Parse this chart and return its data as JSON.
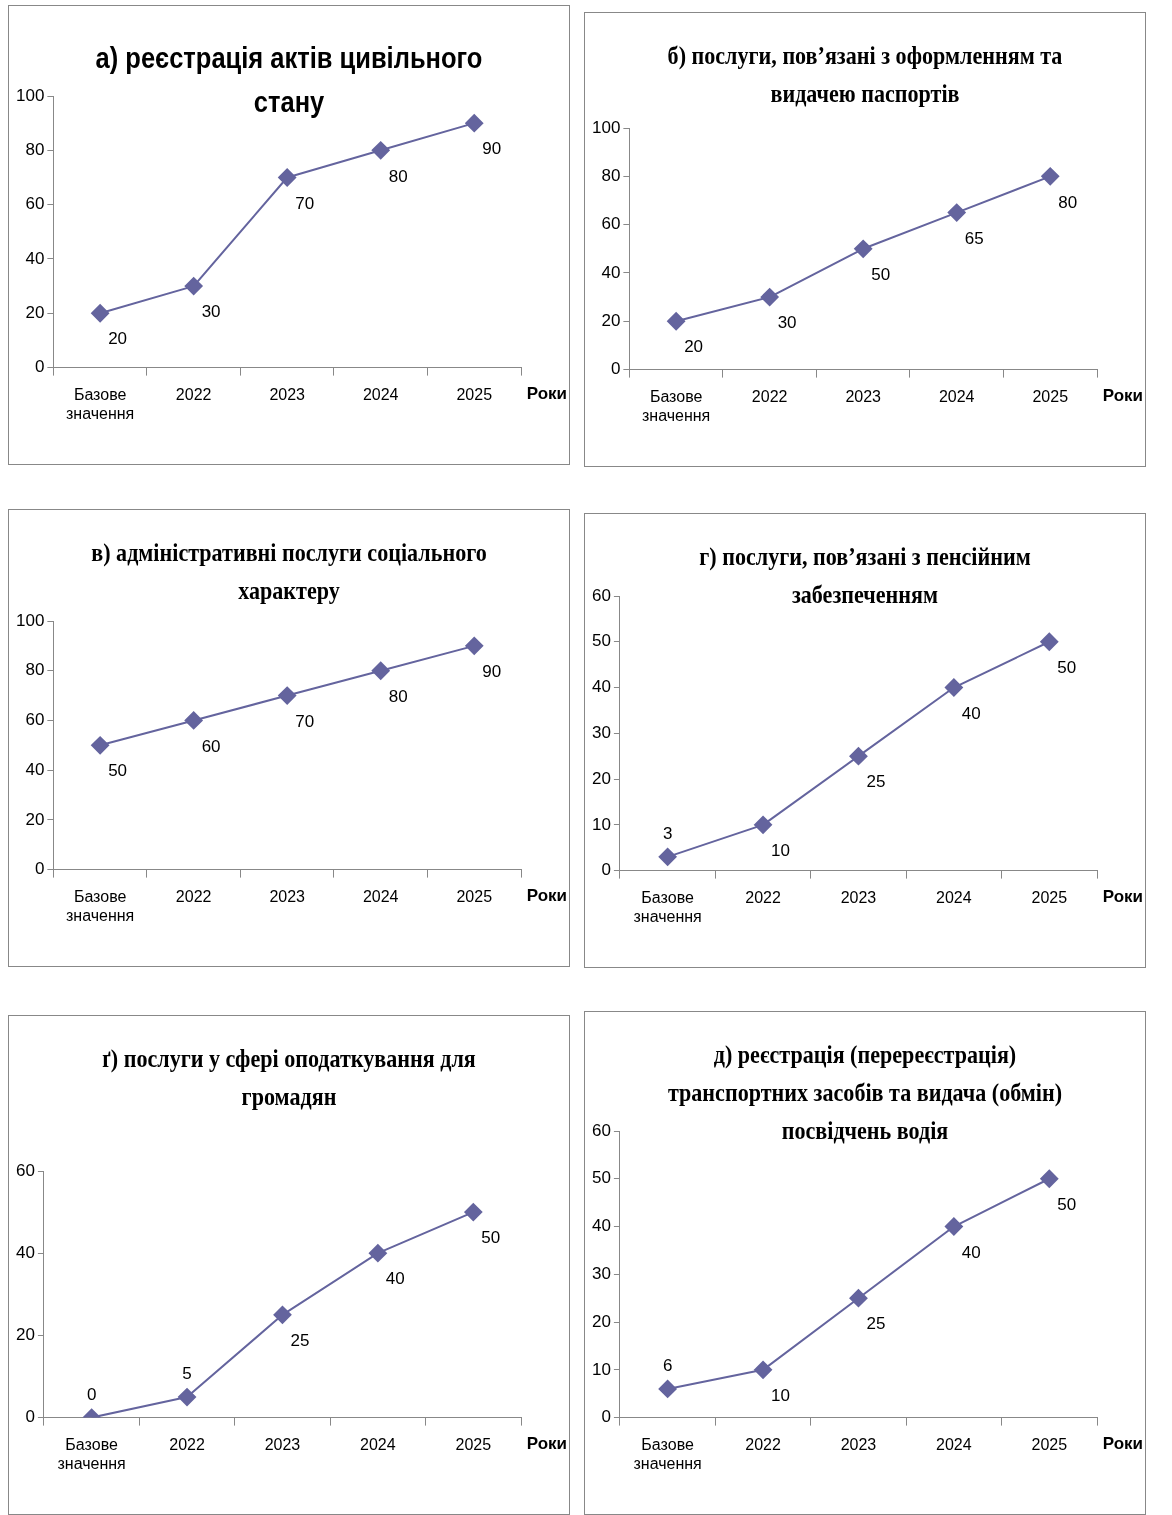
{
  "chart_data": [
    {
      "type": "line",
      "title": "а) реєстрація актів цивільного стану",
      "xlabel": "Роки",
      "categories": [
        "Базове значення",
        "2022",
        "2023",
        "2024",
        "2025"
      ],
      "values": [
        20,
        30,
        70,
        80,
        90
      ],
      "color": "#64649e",
      "ylim": [
        0,
        100
      ],
      "yticks": [
        0,
        20,
        40,
        60,
        80,
        100
      ],
      "grid": false,
      "marker": "diamond",
      "data_labels": true
    },
    {
      "type": "line",
      "title": "б) послуги, пов’язані з оформленням та видачею паспортів",
      "xlabel": "Роки",
      "categories": [
        "Базове значення",
        "2022",
        "2023",
        "2024",
        "2025"
      ],
      "values": [
        20,
        30,
        50,
        65,
        80
      ],
      "color": "#64649e",
      "ylim": [
        0,
        100
      ],
      "yticks": [
        0,
        20,
        40,
        60,
        80,
        100
      ],
      "grid": false,
      "marker": "diamond",
      "data_labels": true
    },
    {
      "type": "line",
      "title": "в) адміністративні послуги соціального характеру",
      "xlabel": "Роки",
      "categories": [
        "Базове значення",
        "2022",
        "2023",
        "2024",
        "2025"
      ],
      "values": [
        50,
        60,
        70,
        80,
        90
      ],
      "color": "#64649e",
      "ylim": [
        0,
        100
      ],
      "yticks": [
        0,
        20,
        40,
        60,
        80,
        100
      ],
      "grid": false,
      "marker": "diamond",
      "data_labels": true
    },
    {
      "type": "line",
      "title": "г) послуги, пов’язані з пенсійним забезпеченням",
      "xlabel": "Роки",
      "categories": [
        "Базове значення",
        "2022",
        "2023",
        "2024",
        "2025"
      ],
      "values": [
        3,
        10,
        25,
        40,
        50
      ],
      "color": "#64649e",
      "ylim": [
        0,
        60
      ],
      "yticks": [
        0,
        10,
        20,
        30,
        40,
        50,
        60
      ],
      "grid": false,
      "marker": "diamond",
      "data_labels": true
    },
    {
      "type": "line",
      "title": "ґ)  послуги у сфері оподаткування для громадян",
      "xlabel": "Роки",
      "categories": [
        "Базове значення",
        "2022",
        "2023",
        "2024",
        "2025"
      ],
      "values": [
        0,
        5,
        25,
        40,
        50
      ],
      "color": "#64649e",
      "ylim": [
        0,
        60
      ],
      "yticks": [
        0,
        20,
        40,
        60
      ],
      "grid": false,
      "marker": "diamond",
      "data_labels": true
    },
    {
      "type": "line",
      "title": "д) реєстрація (перереєстрація) транспортних засобів та видача (обмін) посвідчень водія",
      "xlabel": "Роки",
      "categories": [
        "Базове значення",
        "2022",
        "2023",
        "2024",
        "2025"
      ],
      "values": [
        6,
        10,
        25,
        40,
        50
      ],
      "color": "#64649e",
      "ylim": [
        0,
        60
      ],
      "yticks": [
        0,
        10,
        20,
        30,
        40,
        50,
        60
      ],
      "grid": false,
      "marker": "diamond",
      "data_labels": true
    }
  ]
}
